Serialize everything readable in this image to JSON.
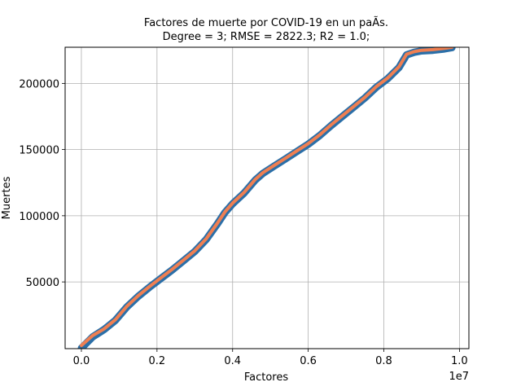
{
  "chart_data": {
    "type": "line",
    "title": "Factores de muerte por COVID-19 en un paÃ­s.",
    "subtitle": "Degree = 3; RMSE = 2822.3; R2 = 1.0;",
    "xlabel": "Factores",
    "ylabel": "Muertes",
    "x_offset_label": "1e7",
    "xlim": [
      -430000,
      10250000
    ],
    "ylim": [
      -400,
      227300
    ],
    "x_ticks": [
      0,
      2000000,
      4000000,
      6000000,
      8000000,
      10000000
    ],
    "x_tick_labels": [
      "0.0",
      "0.2",
      "0.4",
      "0.6",
      "0.8",
      "1.0"
    ],
    "y_ticks": [
      50000,
      100000,
      150000,
      200000
    ],
    "y_tick_labels": [
      "50000",
      "100000",
      "150000",
      "200000"
    ],
    "grid": true,
    "colors": {
      "data": "#2b6fa8",
      "fit": "#ef7f52"
    },
    "series": [
      {
        "name": "",
        "role": "data",
        "x": [
          0,
          300000,
          600000,
          900000,
          1200000,
          1500000,
          1800000,
          2100000,
          2400000,
          2700000,
          3000000,
          3300000,
          3600000,
          3800000,
          4000000,
          4300000,
          4600000,
          4800000,
          5100000,
          5400000,
          5700000,
          6000000,
          6300000,
          6600000,
          6900000,
          7200000,
          7500000,
          7800000,
          8100000,
          8400000,
          8600000,
          8800000,
          9000000,
          9300000,
          9600000,
          9800000
        ],
        "y": [
          0,
          8500,
          14000,
          21000,
          31000,
          39000,
          46000,
          52500,
          59000,
          66000,
          73000,
          82000,
          94000,
          102500,
          109000,
          117000,
          127000,
          132000,
          137500,
          143000,
          148500,
          154000,
          160500,
          168000,
          175000,
          182000,
          189000,
          197000,
          203500,
          212000,
          221500,
          223500,
          224500,
          225000,
          226000,
          227000
        ]
      },
      {
        "name": "",
        "role": "fit",
        "x": [
          0,
          300000,
          600000,
          900000,
          1200000,
          1500000,
          1800000,
          2100000,
          2400000,
          2700000,
          3000000,
          3300000,
          3600000,
          3800000,
          4000000,
          4300000,
          4600000,
          4800000,
          5100000,
          5400000,
          5700000,
          6000000,
          6300000,
          6600000,
          6900000,
          7200000,
          7500000,
          7800000,
          8100000,
          8400000,
          8600000,
          8800000,
          9000000,
          9300000,
          9600000,
          9800000
        ],
        "y": [
          2000,
          9500,
          14500,
          21500,
          31500,
          39500,
          46500,
          53000,
          59500,
          66500,
          73500,
          82500,
          94500,
          103000,
          109500,
          117500,
          127500,
          132500,
          138000,
          143500,
          149000,
          154500,
          161000,
          168500,
          175500,
          182500,
          189500,
          197500,
          204000,
          212500,
          222000,
          224000,
          225000,
          225500,
          226500,
          227300
        ]
      }
    ]
  }
}
